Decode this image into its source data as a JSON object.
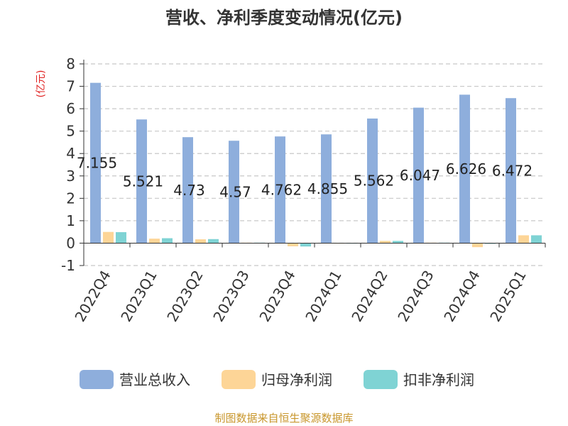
{
  "colors": {
    "revenue": "#8eaedc",
    "net_profit": "#fdd597",
    "non_recurring_profit": "#7fd3d4",
    "grid": "#c8c8c8",
    "axis": "#333333",
    "ylabel": "#e02020",
    "source": "#c8962b"
  },
  "chart_data": {
    "type": "bar",
    "title": "营收、净利季度变动情况(亿元)",
    "ylabel": "(亿元)",
    "xlabel": "",
    "ylim": [
      -1,
      8
    ],
    "yticks": [
      -1,
      0,
      1,
      2,
      3,
      4,
      5,
      6,
      7,
      8
    ],
    "grid": true,
    "legend_position": "bottom",
    "categories": [
      "2022Q4",
      "2023Q1",
      "2023Q2",
      "2023Q3",
      "2023Q4",
      "2024Q1",
      "2024Q2",
      "2024Q3",
      "2024Q4",
      "2025Q1"
    ],
    "series": [
      {
        "name": "营业总收入",
        "values": [
          7.155,
          5.521,
          4.73,
          4.57,
          4.762,
          4.855,
          5.562,
          6.047,
          6.626,
          6.472
        ]
      },
      {
        "name": "归母净利润",
        "values": [
          0.5,
          0.2,
          0.17,
          0.02,
          -0.14,
          0.01,
          0.1,
          0.02,
          -0.18,
          0.35
        ]
      },
      {
        "name": "扣非净利润",
        "values": [
          0.49,
          0.22,
          0.18,
          0.02,
          -0.15,
          0.01,
          0.1,
          0.02,
          -0.01,
          0.35
        ]
      }
    ],
    "data_labels": [
      "7.155",
      "5.521",
      "4.73",
      "4.57",
      "4.762",
      "4.855",
      "5.562",
      "6.047",
      "6.626",
      "6.472"
    ]
  },
  "source": "制图数据来自恒生聚源数据库"
}
